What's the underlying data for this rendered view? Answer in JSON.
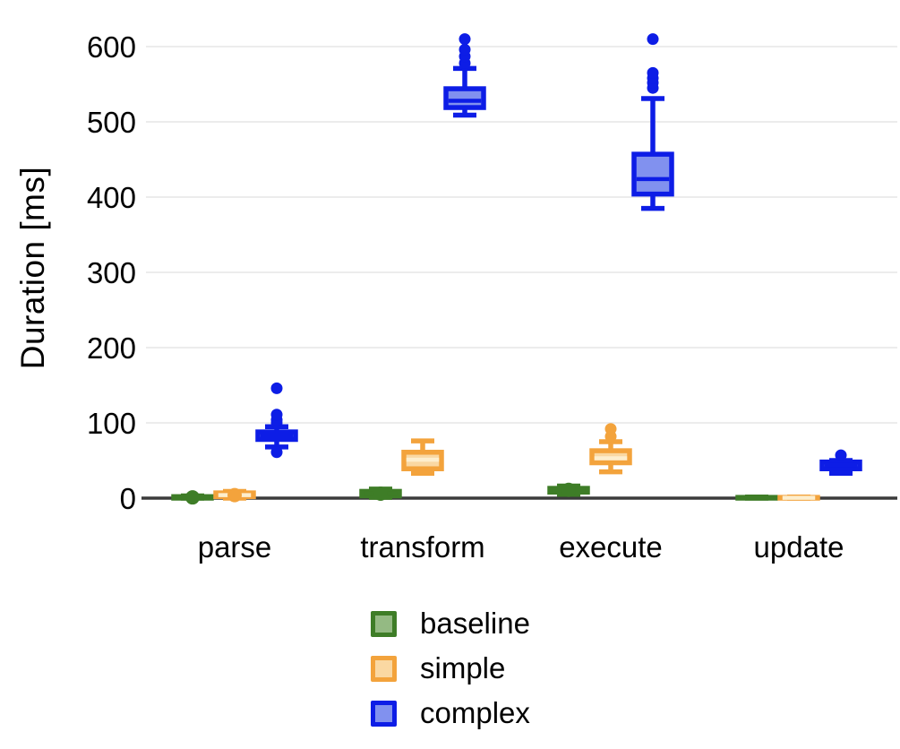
{
  "chart_data": {
    "type": "boxplot",
    "title": "",
    "xlabel": "",
    "ylabel": "Duration [ms]",
    "categories": [
      "parse",
      "transform",
      "execute",
      "update"
    ],
    "y_ticks": [
      0,
      100,
      200,
      300,
      400,
      500,
      600
    ],
    "ylim": [
      0,
      620
    ],
    "grid": "horizontal-light-gray",
    "legend_position": "bottom-center",
    "axis_color": "#3b3b3b",
    "grid_color": "#ececec",
    "series": [
      {
        "name": "baseline",
        "stroke": "#3e7d27",
        "fill": "#94ba83",
        "median_color": "#3e7d27",
        "boxes": [
          {
            "category": "parse",
            "low": 0,
            "q1": 0,
            "median": 1,
            "q3": 2,
            "high": 3,
            "outliers": [],
            "median_dot": true
          },
          {
            "category": "transform",
            "low": 1,
            "q1": 3,
            "median": 6,
            "q3": 9,
            "high": 12,
            "outliers": [],
            "median_dot": true
          },
          {
            "category": "execute",
            "low": 5,
            "q1": 8,
            "median": 11,
            "q3": 13,
            "high": 16,
            "outliers": [],
            "median_dot": true
          },
          {
            "category": "update",
            "low": 0,
            "q1": 0,
            "median": 0.5,
            "q3": 1,
            "high": 1.5,
            "outliers": [],
            "median_dot": false
          }
        ]
      },
      {
        "name": "simple",
        "stroke": "#f3a33c",
        "fill": "#fad8a2",
        "median_color": "#fdeecd",
        "boxes": [
          {
            "category": "parse",
            "low": 0,
            "q1": 2,
            "median": 4,
            "q3": 7,
            "high": 9,
            "outliers": [],
            "median_dot": true
          },
          {
            "category": "transform",
            "low": 33,
            "q1": 39,
            "median": 51,
            "q3": 61,
            "high": 76,
            "outliers": [],
            "median_dot": false
          },
          {
            "category": "execute",
            "low": 35,
            "q1": 47,
            "median": 53,
            "q3": 63,
            "high": 75,
            "outliers": [
              82,
              92
            ],
            "median_dot": false
          },
          {
            "category": "update",
            "low": 0,
            "q1": 0,
            "median": 0.5,
            "q3": 1,
            "high": 1.5,
            "outliers": [],
            "median_dot": false
          }
        ]
      },
      {
        "name": "complex",
        "stroke": "#0d1de6",
        "fill": "#8191ef",
        "median_color": "#0d1de6",
        "boxes": [
          {
            "category": "parse",
            "low": 68,
            "q1": 78,
            "median": 83,
            "q3": 88,
            "high": 95,
            "outliers": [
              61,
              100,
              104,
              111,
              146
            ],
            "median_dot": false
          },
          {
            "category": "transform",
            "low": 509,
            "q1": 519,
            "median": 528,
            "q3": 544,
            "high": 571,
            "outliers": [
              578,
              587,
              596,
              610
            ],
            "median_dot": false
          },
          {
            "category": "execute",
            "low": 385,
            "q1": 404,
            "median": 424,
            "q3": 457,
            "high": 531,
            "outliers": [
              545,
              552,
              558,
              565,
              610
            ],
            "median_dot": false
          },
          {
            "category": "update",
            "low": 33,
            "q1": 39,
            "median": 44,
            "q3": 48,
            "high": 50,
            "outliers": [
              57
            ],
            "median_dot": false
          }
        ]
      }
    ],
    "legend_entries": [
      "baseline",
      "simple",
      "complex"
    ]
  }
}
